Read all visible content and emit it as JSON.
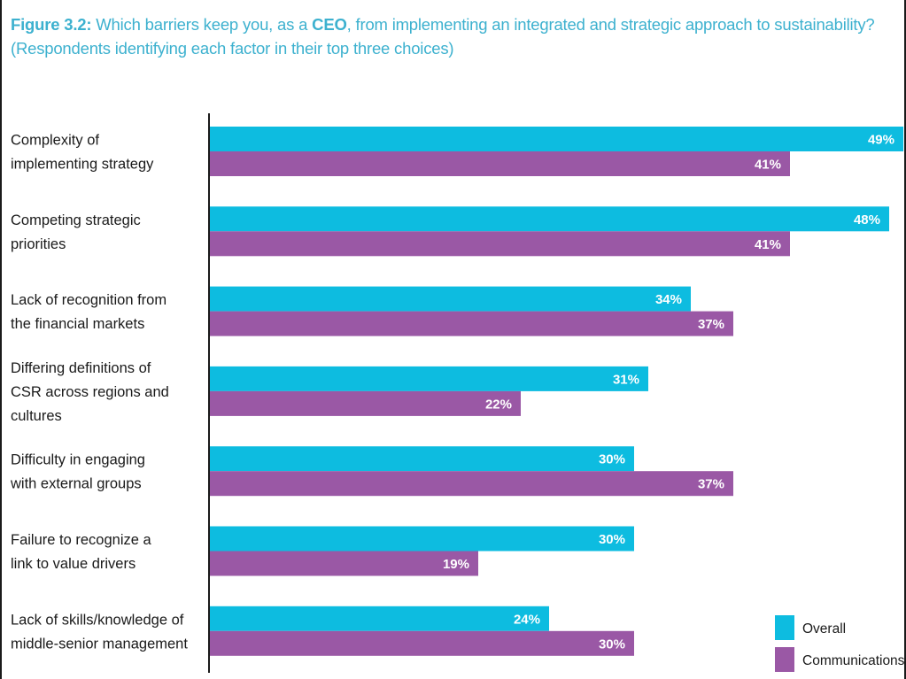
{
  "title": {
    "prefix": "Figure 3.2:",
    "line1_a": " Which barriers keep you, as a ",
    "line1_bold": "CEO",
    "line1_b": ", from implementing an integrated and strategic approach to sustainability?",
    "line2": "(Respondents identifying each factor in their top three choices)"
  },
  "colors": {
    "title": "#3db1cf",
    "overall": "#0dbce0",
    "communications": "#9a58a5",
    "axis": "#1a1a1a"
  },
  "chart_data": {
    "type": "bar",
    "orientation": "horizontal",
    "categories": [
      [
        "Complexity of",
        "implementing strategy"
      ],
      [
        "Competing strategic",
        "priorities"
      ],
      [
        "Lack of recognition from",
        "the financial markets"
      ],
      [
        "Differing definitions of",
        "CSR across regions and",
        "cultures"
      ],
      [
        "Difficulty in engaging",
        "with external groups"
      ],
      [
        "Failure to recognize a",
        "link to value drivers"
      ],
      [
        "Lack of skills/knowledge of",
        "middle-senior management"
      ]
    ],
    "series": [
      {
        "name": "Overall",
        "values": [
          49,
          48,
          34,
          31,
          30,
          30,
          24
        ],
        "labels": [
          "49%",
          "48%",
          "34%",
          "31%",
          "30%",
          "30%",
          "24%"
        ]
      },
      {
        "name": "Communications",
        "values": [
          41,
          41,
          37,
          22,
          37,
          19,
          30
        ],
        "labels": [
          "41%",
          "41%",
          "37%",
          "22%",
          "37%",
          "19%",
          "30%"
        ]
      }
    ],
    "xlim": [
      0,
      49
    ],
    "legend_position": "bottom-right"
  }
}
